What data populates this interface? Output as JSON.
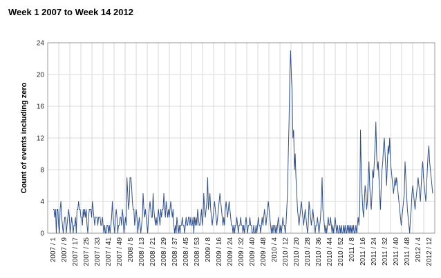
{
  "chart_data": {
    "type": "line",
    "title": "Week 1 2007 to Week 14 2012",
    "ylabel": "Count of events including zero",
    "xlabel": "",
    "ylim": [
      0,
      24
    ],
    "yticks": [
      0,
      4,
      8,
      12,
      16,
      20,
      24
    ],
    "grid": true,
    "series_color": "#2f4f8f",
    "grid_color": "#d8d8d8",
    "x_tick_labels": [
      "2007 / 1",
      "2007 / 9",
      "2007 / 17",
      "2007 / 25",
      "2007 / 33",
      "2007 / 41",
      "2007 / 49",
      "2008 / 5",
      "2008 / 13",
      "2008 / 21",
      "2008 / 29",
      "2008 / 37",
      "2008 / 45",
      "2008 / 53",
      "2009 / 8",
      "2009 / 16",
      "2009 / 24",
      "2009 / 32",
      "2009 / 40",
      "2009 / 48",
      "2010 / 4",
      "2010 / 12",
      "2010 / 20",
      "2010 / 28",
      "2010 / 36",
      "2010 / 44",
      "2010 / 52",
      "2011 / 8",
      "2011 / 16",
      "2011 / 24",
      "2011 / 32",
      "2011 / 40",
      "2011 / 48",
      "2012 / 4",
      "2012 / 12"
    ],
    "series": [
      {
        "values": [
          3,
          3,
          2,
          3,
          0,
          3,
          3,
          1,
          0,
          3,
          4,
          2,
          1,
          0,
          1,
          2,
          2,
          0,
          1,
          2,
          3,
          2,
          0,
          1,
          2,
          1,
          0,
          1,
          1,
          2,
          0,
          3,
          3,
          4,
          3,
          3,
          2,
          2,
          1,
          3,
          2,
          3,
          2,
          3,
          1,
          0,
          2,
          3,
          3,
          3,
          2,
          4,
          3,
          2,
          1,
          2,
          2,
          2,
          1,
          2,
          2,
          2,
          1,
          1,
          2,
          1,
          0,
          1,
          0,
          0,
          1,
          1,
          0,
          1,
          0,
          1,
          2,
          4,
          2,
          1,
          0,
          2,
          3,
          2,
          0,
          1,
          1,
          2,
          2,
          1,
          3,
          2,
          0,
          1,
          2,
          1,
          7,
          5,
          3,
          4,
          7,
          7,
          6,
          4,
          3,
          3,
          1,
          2,
          3,
          2,
          0,
          1,
          2,
          1,
          0,
          1,
          2,
          5,
          3,
          2,
          3,
          2,
          1,
          0,
          2,
          3,
          4,
          3,
          2,
          2,
          5,
          3,
          2,
          1,
          2,
          1,
          2,
          3,
          2,
          1,
          3,
          2,
          3,
          3,
          5,
          3,
          2,
          4,
          3,
          2,
          3,
          2,
          3,
          4,
          3,
          2,
          3,
          1,
          0,
          1,
          0,
          2,
          1,
          0,
          1,
          0,
          1,
          1,
          2,
          1,
          1,
          0,
          1,
          2,
          1,
          1,
          2,
          2,
          1,
          2,
          1,
          1,
          2,
          0,
          2,
          1,
          2,
          1,
          3,
          2,
          1,
          1,
          2,
          3,
          1,
          2,
          5,
          3,
          2,
          3,
          4,
          7,
          3,
          4,
          5,
          3,
          2,
          1,
          2,
          3,
          4,
          3,
          2,
          1,
          2,
          3,
          4,
          5,
          4,
          3,
          2,
          1,
          2,
          1,
          3,
          4,
          3,
          2,
          3,
          4,
          3,
          2,
          1,
          1,
          0,
          1,
          0,
          1,
          1,
          2,
          1,
          0,
          1,
          1,
          2,
          1,
          1,
          0,
          1,
          0,
          1,
          2,
          1,
          0,
          1,
          1,
          2,
          1,
          1,
          0,
          0,
          1,
          0,
          0,
          1,
          0,
          1,
          2,
          1,
          1,
          0,
          1,
          2,
          1,
          2,
          3,
          2,
          1,
          2,
          3,
          4,
          3,
          2,
          1,
          0,
          1,
          0,
          1,
          1,
          0,
          1,
          0,
          1,
          2,
          1,
          0,
          1,
          0,
          1,
          2,
          1,
          1,
          0,
          1,
          3,
          5,
          10,
          14,
          20,
          23,
          20,
          18,
          12,
          13,
          8,
          10,
          7,
          5,
          3,
          2,
          1,
          2,
          3,
          4,
          3,
          2,
          1,
          2,
          3,
          2,
          1,
          0,
          1,
          4,
          3,
          2,
          1,
          2,
          3,
          2,
          1,
          0,
          1,
          1,
          2,
          1,
          0,
          1,
          2,
          4,
          7,
          3,
          2,
          1,
          0,
          1,
          0,
          1,
          2,
          1,
          1,
          2,
          1,
          0,
          1,
          0,
          1,
          2,
          1,
          0,
          1,
          0,
          0,
          1,
          0,
          1,
          0,
          0,
          1,
          0,
          1,
          0,
          0,
          1,
          0,
          1,
          0,
          1,
          0,
          1,
          0,
          1,
          0,
          0,
          1,
          0,
          1,
          2,
          1,
          3,
          13,
          8,
          5,
          3,
          2,
          4,
          6,
          5,
          3,
          4,
          7,
          9,
          6,
          4,
          3,
          5,
          8,
          7,
          9,
          11,
          14,
          10,
          8,
          9,
          7,
          5,
          3,
          6,
          8,
          9,
          11,
          12,
          10,
          8,
          6,
          9,
          11,
          10,
          12,
          9,
          8,
          7,
          6,
          5,
          6,
          7,
          6,
          7,
          6,
          5,
          4,
          3,
          2,
          1,
          2,
          3,
          4,
          5,
          9,
          7,
          5,
          3,
          2,
          1,
          0,
          2,
          3,
          5,
          6,
          5,
          4,
          3,
          4,
          5,
          6,
          7,
          6,
          5,
          4,
          6,
          8,
          9,
          7,
          6,
          5,
          4,
          6,
          8,
          10,
          11,
          9,
          8,
          7,
          6,
          5
        ]
      }
    ]
  }
}
